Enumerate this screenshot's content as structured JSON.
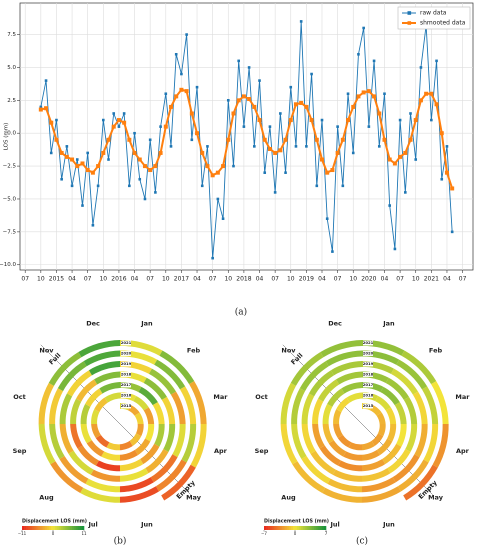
{
  "chart_data": [
    {
      "type": "line",
      "caption": "(a)",
      "ylabel": "LOS (mm)",
      "x": [
        "2014-10",
        "2014-11",
        "2014-12",
        "2015-01",
        "2015-02",
        "2015-03",
        "2015-04",
        "2015-05",
        "2015-06",
        "2015-07",
        "2015-08",
        "2015-09",
        "2015-10",
        "2015-11",
        "2015-12",
        "2016-01",
        "2016-02",
        "2016-03",
        "2016-04",
        "2016-05",
        "2016-06",
        "2016-07",
        "2016-08",
        "2016-09",
        "2016-10",
        "2016-11",
        "2016-12",
        "2017-01",
        "2017-02",
        "2017-03",
        "2017-04",
        "2017-05",
        "2017-06",
        "2017-07",
        "2017-08",
        "2017-09",
        "2017-10",
        "2017-11",
        "2017-12",
        "2018-01",
        "2018-02",
        "2018-03",
        "2018-04",
        "2018-05",
        "2018-06",
        "2018-07",
        "2018-08",
        "2018-09",
        "2018-10",
        "2018-11",
        "2018-12",
        "2019-01",
        "2019-02",
        "2019-03",
        "2019-04",
        "2019-05",
        "2019-06",
        "2019-07",
        "2019-08",
        "2019-09",
        "2019-10",
        "2019-11",
        "2019-12",
        "2020-01",
        "2020-02",
        "2020-03",
        "2020-04",
        "2020-05",
        "2020-06",
        "2020-07",
        "2020-08",
        "2020-09",
        "2020-10",
        "2020-11",
        "2020-12",
        "2021-01",
        "2021-02",
        "2021-03",
        "2021-04",
        "2021-05"
      ],
      "series": [
        {
          "name": "raw data",
          "color": "#1f77b4",
          "values": [
            2.0,
            4.0,
            -1.5,
            1.0,
            -3.5,
            -1.0,
            -4.0,
            -2.0,
            -5.5,
            -1.5,
            -7.0,
            -4.0,
            1.0,
            -2.0,
            1.5,
            0.5,
            1.5,
            -4.0,
            0.0,
            -3.5,
            -5.0,
            -0.5,
            -4.5,
            0.5,
            3.0,
            -1.0,
            6.0,
            4.5,
            7.5,
            -0.5,
            3.5,
            -4.0,
            -1.0,
            -9.5,
            -5.0,
            -6.5,
            2.5,
            -2.5,
            5.5,
            0.5,
            5.0,
            -1.0,
            4.0,
            -3.0,
            0.5,
            -4.5,
            1.5,
            -3.0,
            3.5,
            -1.0,
            8.5,
            -1.0,
            4.5,
            -4.0,
            1.0,
            -6.5,
            -9.0,
            0.5,
            -4.0,
            3.0,
            -1.5,
            6.0,
            8.0,
            0.5,
            5.5,
            -1.0,
            3.0,
            -5.5,
            -8.8,
            1.0,
            -4.5,
            1.5,
            -2.0,
            5.0,
            8.2,
            1.0,
            5.5,
            -3.5,
            -1.0,
            -7.5
          ]
        },
        {
          "name": "shmooted data",
          "color": "#ff7f0e",
          "values": [
            1.8,
            1.9,
            0.8,
            -0.5,
            -1.5,
            -1.8,
            -2.0,
            -2.5,
            -2.3,
            -2.8,
            -3.0,
            -2.5,
            -1.5,
            -0.5,
            0.5,
            1.0,
            0.8,
            -0.5,
            -1.5,
            -2.0,
            -2.5,
            -2.8,
            -2.5,
            -1.5,
            0.5,
            2.0,
            2.8,
            3.3,
            3.2,
            1.5,
            0.0,
            -1.5,
            -2.5,
            -3.2,
            -3.0,
            -2.5,
            -0.5,
            1.5,
            2.5,
            2.8,
            2.6,
            2.0,
            1.0,
            -0.5,
            -1.2,
            -1.5,
            -1.3,
            -0.5,
            1.0,
            2.2,
            2.3,
            2.0,
            1.0,
            -0.5,
            -2.0,
            -3.0,
            -2.8,
            -1.5,
            -0.5,
            1.0,
            2.0,
            2.8,
            3.1,
            3.2,
            2.8,
            1.5,
            -0.5,
            -2.0,
            -2.3,
            -1.8,
            -1.5,
            -0.5,
            1.0,
            2.5,
            3.0,
            3.0,
            2.2,
            0.0,
            -3.0,
            -4.2
          ]
        }
      ],
      "xlim": [
        "2014-06",
        "2021-09"
      ],
      "xticks": [
        {
          "value": "2014-07",
          "label": "07"
        },
        {
          "value": "2014-10",
          "label": "10"
        },
        {
          "value": "2015-01",
          "label": "2015"
        },
        {
          "value": "2015-04",
          "label": "04"
        },
        {
          "value": "2015-07",
          "label": "07"
        },
        {
          "value": "2015-10",
          "label": "10"
        },
        {
          "value": "2016-01",
          "label": "2016"
        },
        {
          "value": "2016-04",
          "label": "04"
        },
        {
          "value": "2016-07",
          "label": "07"
        },
        {
          "value": "2016-10",
          "label": "10"
        },
        {
          "value": "2017-01",
          "label": "2017"
        },
        {
          "value": "2017-04",
          "label": "04"
        },
        {
          "value": "2017-07",
          "label": "07"
        },
        {
          "value": "2017-10",
          "label": "10"
        },
        {
          "value": "2018-01",
          "label": "2018"
        },
        {
          "value": "2018-04",
          "label": "04"
        },
        {
          "value": "2018-07",
          "label": "07"
        },
        {
          "value": "2018-10",
          "label": "10"
        },
        {
          "value": "2019-01",
          "label": "2019"
        },
        {
          "value": "2019-04",
          "label": "04"
        },
        {
          "value": "2019-07",
          "label": "07"
        },
        {
          "value": "2019-10",
          "label": "10"
        },
        {
          "value": "2020-01",
          "label": "2020"
        },
        {
          "value": "2020-04",
          "label": "04"
        },
        {
          "value": "2020-07",
          "label": "07"
        },
        {
          "value": "2020-10",
          "label": "10"
        },
        {
          "value": "2021-01",
          "label": "2021"
        },
        {
          "value": "2021-04",
          "label": "04"
        },
        {
          "value": "2021-07",
          "label": "07"
        }
      ],
      "ylim": [
        -10.4,
        9.9
      ],
      "yticks": [
        {
          "value": -10,
          "label": "−10.0"
        },
        {
          "value": -7.5,
          "label": "−7.5"
        },
        {
          "value": -5,
          "label": "−5.0"
        },
        {
          "value": -2.5,
          "label": "−2.5"
        },
        {
          "value": 0,
          "label": "0.0"
        },
        {
          "value": 2.5,
          "label": "2.5"
        },
        {
          "value": 5,
          "label": "5.0"
        },
        7.5
      ],
      "grid": true,
      "legend": "upper right"
    },
    {
      "type": "spiral",
      "caption": "(b)",
      "annotations": [
        "Full",
        "Empty"
      ],
      "colorbar_label": "Displacement LOS (mm)",
      "categories": [
        "Jan",
        "Feb",
        "Mar",
        "Apr",
        "May",
        "Jun",
        "Jul",
        "Aug",
        "Sep",
        "Oct",
        "Nov",
        "Dec"
      ],
      "series": [
        {
          "name": "2015",
          "values": [
            1.0,
            -3.5,
            -1.0,
            -4.0,
            -2.0,
            -5.5,
            -1.5,
            -7.0,
            -4.0,
            1.0,
            -2.0,
            1.5
          ]
        },
        {
          "name": "2016",
          "values": [
            0.5,
            1.5,
            -4.0,
            0.0,
            -3.5,
            -5.0,
            -0.5,
            -4.5,
            0.5,
            3.0,
            -1.0,
            6.0
          ]
        },
        {
          "name": "2017",
          "values": [
            4.5,
            7.5,
            -0.5,
            3.5,
            -4.0,
            -1.0,
            -9.5,
            -5.0,
            -6.5,
            2.5,
            -2.5,
            5.5
          ]
        },
        {
          "name": "2018",
          "values": [
            0.5,
            5.0,
            -1.0,
            4.0,
            -3.0,
            0.5,
            -4.5,
            1.5,
            -3.0,
            3.5,
            -1.0,
            8.5
          ]
        },
        {
          "name": "2019",
          "values": [
            -1.0,
            4.5,
            -4.0,
            1.0,
            -6.5,
            -9.0,
            0.5,
            -4.0,
            3.0,
            -1.5,
            6.0,
            8.0
          ]
        },
        {
          "name": "2020",
          "values": [
            0.5,
            5.5,
            -1.0,
            3.0,
            -5.5,
            -8.8,
            1.0,
            -4.5,
            1.5,
            -2.0,
            5.0,
            8.2
          ]
        },
        {
          "name": "2021",
          "values": [
            1.0,
            5.5,
            -3.5,
            -1.0,
            -7.5,
            null,
            null,
            null,
            null,
            null,
            null,
            null
          ]
        }
      ],
      "colormap": [
        "#e8261e",
        "#f3e43a",
        "#12913a"
      ],
      "clim": [
        -11,
        11
      ],
      "cticks": [
        {
          "value": -11,
          "label": "−11"
        },
        0,
        11
      ]
    },
    {
      "type": "spiral",
      "caption": "(c)",
      "annotations": [
        "Full",
        "Empty"
      ],
      "colorbar_label": "Displacement LOS (mm)",
      "categories": [
        "Jan",
        "Feb",
        "Mar",
        "Apr",
        "May",
        "Jun",
        "Jul",
        "Aug",
        "Sep",
        "Oct",
        "Nov",
        "Dec"
      ],
      "series": [
        {
          "name": "2015",
          "values": [
            -0.5,
            -1.5,
            -1.8,
            -2.0,
            -2.5,
            -2.3,
            -2.8,
            -3.0,
            -2.5,
            -1.5,
            -0.5,
            0.5
          ]
        },
        {
          "name": "2016",
          "values": [
            1.0,
            0.8,
            -0.5,
            -1.5,
            -2.0,
            -2.5,
            -2.8,
            -2.5,
            -1.5,
            0.5,
            2.0,
            2.8
          ]
        },
        {
          "name": "2017",
          "values": [
            3.3,
            3.2,
            1.5,
            0.0,
            -1.5,
            -2.5,
            -3.2,
            -3.0,
            -2.5,
            -0.5,
            1.5,
            2.5
          ]
        },
        {
          "name": "2018",
          "values": [
            2.8,
            2.6,
            2.0,
            1.0,
            -0.5,
            -1.2,
            -1.5,
            -1.3,
            -0.5,
            1.0,
            2.2,
            2.3
          ]
        },
        {
          "name": "2019",
          "values": [
            2.0,
            1.0,
            -0.5,
            -2.0,
            -3.0,
            -2.8,
            -1.5,
            -0.5,
            1.0,
            2.0,
            2.8,
            3.1
          ]
        },
        {
          "name": "2020",
          "values": [
            3.2,
            2.8,
            1.5,
            -0.5,
            -2.0,
            -2.3,
            -1.8,
            -1.5,
            -0.5,
            1.0,
            2.5,
            3.0
          ]
        },
        {
          "name": "2021",
          "values": [
            3.0,
            2.2,
            0.0,
            -3.0,
            -4.2,
            null,
            null,
            null,
            null,
            null,
            null,
            null
          ]
        }
      ],
      "colormap": [
        "#e8261e",
        "#f3e43a",
        "#12913a"
      ],
      "clim": [
        -7,
        7
      ],
      "cticks": [
        {
          "value": -7,
          "label": "−7"
        },
        0,
        7
      ]
    }
  ]
}
